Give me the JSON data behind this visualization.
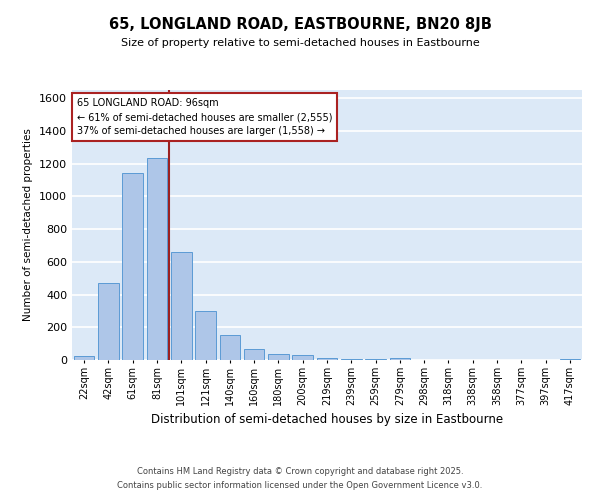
{
  "title": "65, LONGLAND ROAD, EASTBOURNE, BN20 8JB",
  "subtitle": "Size of property relative to semi-detached houses in Eastbourne",
  "xlabel": "Distribution of semi-detached houses by size in Eastbourne",
  "ylabel": "Number of semi-detached properties",
  "footer_line1": "Contains HM Land Registry data © Crown copyright and database right 2025.",
  "footer_line2": "Contains public sector information licensed under the Open Government Licence v3.0.",
  "categories": [
    "22sqm",
    "42sqm",
    "61sqm",
    "81sqm",
    "101sqm",
    "121sqm",
    "140sqm",
    "160sqm",
    "180sqm",
    "200sqm",
    "219sqm",
    "239sqm",
    "259sqm",
    "279sqm",
    "298sqm",
    "318sqm",
    "338sqm",
    "358sqm",
    "377sqm",
    "397sqm",
    "417sqm"
  ],
  "values": [
    25,
    470,
    1145,
    1235,
    660,
    300,
    155,
    65,
    38,
    33,
    15,
    8,
    4,
    10,
    3,
    2,
    2,
    1,
    1,
    1,
    8
  ],
  "bar_color": "#aec6e8",
  "bar_edge_color": "#5b9bd5",
  "bg_color": "#dce9f7",
  "grid_color": "#ffffff",
  "ref_line_color": "#9b2020",
  "annotation_title": "65 LONGLAND ROAD: 96sqm",
  "annotation_line2": "← 61% of semi-detached houses are smaller (2,555)",
  "annotation_line3": "37% of semi-detached houses are larger (1,558) →",
  "annotation_box_color": "#ffffff",
  "annotation_box_edge": "#aa2222",
  "ylim": [
    0,
    1650
  ],
  "yticks": [
    0,
    200,
    400,
    600,
    800,
    1000,
    1200,
    1400,
    1600
  ]
}
